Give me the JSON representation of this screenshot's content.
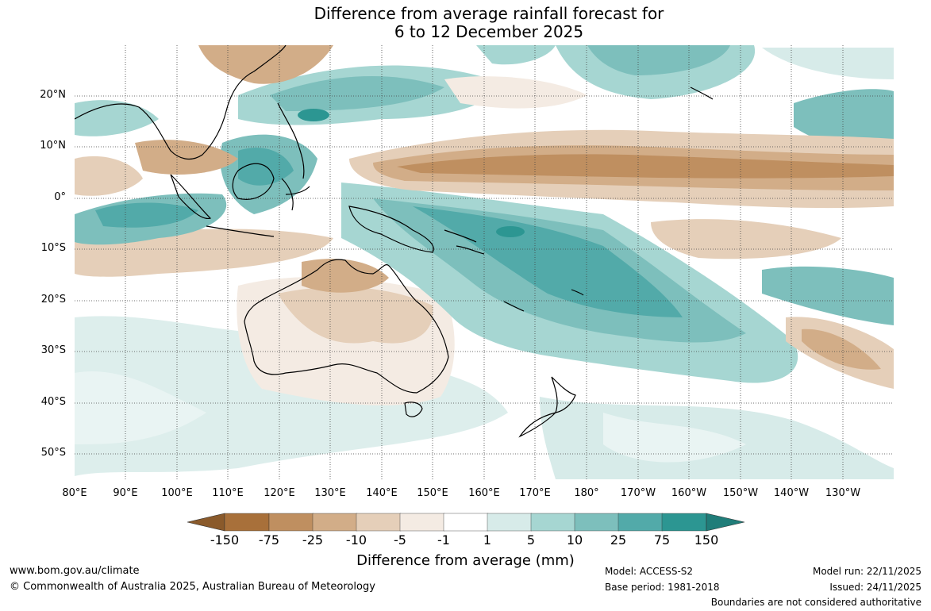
{
  "title": {
    "line1": "Difference from average rainfall forecast for",
    "line2": "6 to 12 December 2025"
  },
  "map": {
    "lat_labels": [
      "20°N",
      "10°N",
      "0°",
      "10°S",
      "20°S",
      "30°S",
      "40°S",
      "50°S"
    ],
    "lon_labels": [
      "80°E",
      "90°E",
      "100°E",
      "110°E",
      "120°E",
      "130°E",
      "140°E",
      "150°E",
      "160°E",
      "170°E",
      "180°",
      "170°W",
      "160°W",
      "150°W",
      "140°W",
      "130°W"
    ]
  },
  "colorbar": {
    "ticks": [
      "-150",
      "-75",
      "-25",
      "-10",
      "-5",
      "-1",
      "1",
      "5",
      "10",
      "25",
      "75",
      "150"
    ],
    "colors": [
      "#a8703a",
      "#bf8f60",
      "#d2ad88",
      "#e5cfb9",
      "#f4ebe3",
      "#ffffff",
      "#d7ebe9",
      "#a6d6d2",
      "#7dbfbc",
      "#52aaa9",
      "#2c9692",
      "#207d79"
    ],
    "label": "Difference from average (mm)"
  },
  "footer": {
    "website": "www.bom.gov.au/climate",
    "copyright": "© Commonwealth of Australia 2025, Australian Bureau of Meteorology",
    "model": "Model: ACCESS-S2",
    "base_period": "Base period: 1981-2018",
    "model_run": "Model run: 22/11/2025",
    "issued": "Issued: 24/11/2025",
    "disclaimer": "Boundaries are not considered authoritative"
  }
}
